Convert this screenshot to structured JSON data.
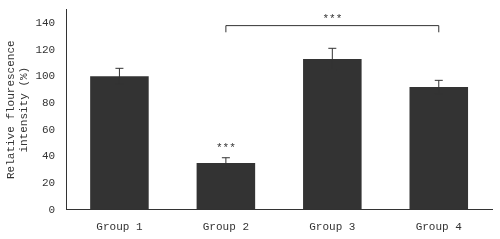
{
  "chart_data": {
    "type": "bar",
    "categories": [
      "Group 1",
      "Group 2",
      "Group 3",
      "Group 4"
    ],
    "values": [
      100,
      35,
      113,
      92
    ],
    "errors": [
      6,
      4,
      8,
      5
    ],
    "color": "#333333",
    "ylabel": "Relative flourescence\nintensity (%)",
    "ylim": [
      0,
      150
    ],
    "yticks": [
      0,
      20,
      40,
      60,
      80,
      100,
      120,
      140
    ],
    "grid": false,
    "annotations": [
      {
        "text": "***",
        "x": "Group 2",
        "y": 42
      }
    ],
    "brackets": [
      {
        "text": "***",
        "from": "Group 2",
        "to": "Group 4",
        "y": 138,
        "drop": 5
      }
    ]
  }
}
